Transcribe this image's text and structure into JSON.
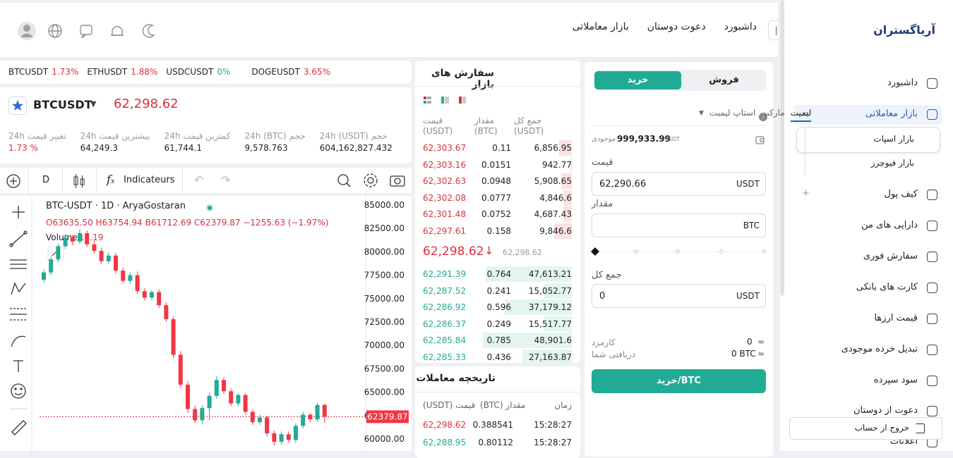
{
  "header": {
    "logo": "آریاگستران",
    "nav": [
      "داشبورد",
      "دعوت دوستان",
      "بازار معاملاتی"
    ]
  },
  "sidebar": {
    "menu": [
      "داشبورد",
      "بازار معاملاتی",
      "کیف پول",
      "دارایی های من",
      "سفارش فوری",
      "کارت های بانکی",
      "قیمت ارزها",
      "تبدیل خرده موجودی",
      "سود سپرده",
      "دعوت از دوستان",
      "اعلانات"
    ],
    "submenu": [
      "بازار اسپات",
      "بازار فیوچرز"
    ],
    "logout": "خروج از حساب"
  },
  "ticker": [
    {
      "symbol": "BTCUSDT",
      "change": "1.73%",
      "color": "#d9303e"
    },
    {
      "symbol": "ETHUSDT",
      "change": "1.88%",
      "color": "#d9303e"
    },
    {
      "symbol": "USDCUSDT",
      "change": "0%",
      "color": "#22ab94"
    },
    {
      "symbol": "DOGEUSDT",
      "change": "3.65%",
      "color": "#d9303e"
    }
  ],
  "market": {
    "symbol": "BTCUSDT",
    "price": "62,298.62",
    "stats": [
      {
        "label": "تغییر قیمت 24h",
        "value": "1.73 %"
      },
      {
        "label": "بیشترین قیمت 24h",
        "value": "64,249.3"
      },
      {
        "label": "کمترین قیمت 24h",
        "value": "61,744.1"
      },
      {
        "label": "حجم (BTC) 24h",
        "value": "9,578.763"
      },
      {
        "label": "حجم (USDT) 24h",
        "value": "604,162,827.432"
      }
    ]
  },
  "toolbar": {
    "interval": "D",
    "indicators": "Indicateurs"
  },
  "chart_data": {
    "type": "candlestick",
    "title": "BTC-USDT · 1D · AryaGostaran",
    "ohlc_text": "O63635.50 H63754.94 B61712.69 C62379.87 −1255.63 (−1.97%)",
    "volume_label": "Volume",
    "volume_value": "12.19",
    "up_color": "#22ab94",
    "down_color": "#f23645",
    "open": [
      77000,
      77800,
      79200,
      80600,
      81500,
      81100,
      82000,
      80800,
      80100,
      79000,
      79600,
      78000,
      76900,
      77500,
      75800,
      75100,
      75700,
      74300,
      72800,
      69000,
      65800,
      63200,
      62000,
      63300,
      64600,
      66300,
      65100,
      63800,
      64700,
      62900,
      61800,
      62300,
      60600,
      59700,
      60500,
      59900,
      61400,
      62600,
      62100,
      63635.5
    ],
    "high": [
      78100,
      79500,
      80900,
      81900,
      81800,
      82400,
      82300,
      81200,
      80400,
      79900,
      79900,
      78300,
      77800,
      77900,
      76100,
      75900,
      76000,
      74600,
      73100,
      69400,
      66200,
      63600,
      63600,
      64900,
      66700,
      66600,
      65400,
      64900,
      64900,
      63200,
      62600,
      62500,
      60900,
      60800,
      60800,
      61700,
      62900,
      62800,
      63900,
      63754.94
    ],
    "low": [
      76700,
      77500,
      78900,
      80300,
      80700,
      80800,
      80500,
      79800,
      78700,
      78700,
      77700,
      76600,
      76600,
      75500,
      74800,
      74800,
      74000,
      72500,
      68600,
      65500,
      62800,
      61700,
      61600,
      62000,
      64300,
      64800,
      63500,
      63500,
      62600,
      61500,
      61500,
      60300,
      59300,
      59400,
      59600,
      59600,
      61100,
      61800,
      61800,
      61712.69
    ],
    "close": [
      77800,
      79200,
      80600,
      81500,
      81100,
      82000,
      80800,
      80100,
      79000,
      79600,
      78000,
      76900,
      77500,
      75800,
      75100,
      75700,
      74300,
      72800,
      69000,
      65800,
      63200,
      62000,
      63300,
      64600,
      66300,
      65100,
      63800,
      64700,
      62900,
      61800,
      62300,
      60600,
      59700,
      60500,
      59900,
      61400,
      62600,
      62100,
      63635.5,
      62379.87
    ],
    "ylim": [
      58720,
      85980
    ],
    "yticks": [
      {
        "value": 85000,
        "label": "85000.00"
      },
      {
        "value": 82500,
        "label": "82500.00"
      },
      {
        "value": 80000,
        "label": "80000.00"
      },
      {
        "value": 77500,
        "label": "77500.00"
      },
      {
        "value": 75000,
        "label": "75000.00"
      },
      {
        "value": 72500,
        "label": "72500.00"
      },
      {
        "value": 70000,
        "label": "70000.00"
      },
      {
        "value": 67500,
        "label": "67500.00"
      },
      {
        "value": 65000,
        "label": "65000.00"
      },
      {
        "value": 62500,
        "label": "62500.00"
      },
      {
        "value": 60000,
        "label": "60000.00"
      }
    ]
  },
  "orderbook": {
    "title": "سفارش های بازار",
    "columns": [
      "قیمت (USDT)",
      "مقدار (BTC)",
      "جمع کل (USDT)"
    ],
    "asks": [
      {
        "price": "62,303.67",
        "amount": 0.11,
        "total": "6,856.95"
      },
      {
        "price": "62,303.16",
        "amount": 0.0151,
        "total": "942.77"
      },
      {
        "price": "62,302.63",
        "amount": 0.0948,
        "total": "5,908.65"
      },
      {
        "price": "62,302.08",
        "amount": 0.0777,
        "total": "4,846.6"
      },
      {
        "price": "62,301.48",
        "amount": 0.0752,
        "total": "4,687.43"
      },
      {
        "price": "62,297.61",
        "amount": 0.158,
        "total": "9,846.6"
      }
    ],
    "last_price": "62,298.62",
    "mark_price": "62,298.62",
    "bids": [
      {
        "price": "62,291.39",
        "amount": 0.764,
        "total": "47,613.21"
      },
      {
        "price": "62,287.52",
        "amount": 0.241,
        "total": "15,052.77"
      },
      {
        "price": "62,286.92",
        "amount": 0.596,
        "total": "37,179.12"
      },
      {
        "price": "62,286.37",
        "amount": 0.249,
        "total": "15,517.77"
      },
      {
        "price": "62,285.84",
        "amount": 0.785,
        "total": "48,901.6"
      },
      {
        "price": "62,285.33",
        "amount": 0.436,
        "total": "27,163.87"
      }
    ]
  },
  "trades": {
    "title": "تاریخچه معاملات",
    "columns": [
      "قیمت (USDT)",
      "مقدار (BTC)",
      "زمان"
    ],
    "rows": [
      {
        "price": "62,298.62",
        "amount": 0.388541,
        "time": "15:28:27",
        "color": "#d9303e"
      },
      {
        "price": "62,288.95",
        "amount": 0.80112,
        "time": "15:28:27",
        "color": "#22ab94"
      }
    ]
  },
  "order_form": {
    "sell_tab": "فروش",
    "buy_tab": "خرید",
    "types": [
      "لیمیت",
      "مارکت",
      "استاپ لیمیت"
    ],
    "balance": "999,933.99",
    "balance_unit": "USDT",
    "balance_label": "موجودی",
    "price_label": "قیمت",
    "price_value": "62,290.66",
    "price_unit": "USDT",
    "amount_label": "مقدار",
    "amount_unit": "BTC",
    "total_label": "جمع کل",
    "total_value": "0",
    "total_unit": "USDT",
    "fee_label": "کارمزد",
    "fee_value": "0",
    "receive_label": "دریافتی شما",
    "receive_value": "0 BTC",
    "approx": "≈",
    "submit": "خرید/BTC"
  }
}
